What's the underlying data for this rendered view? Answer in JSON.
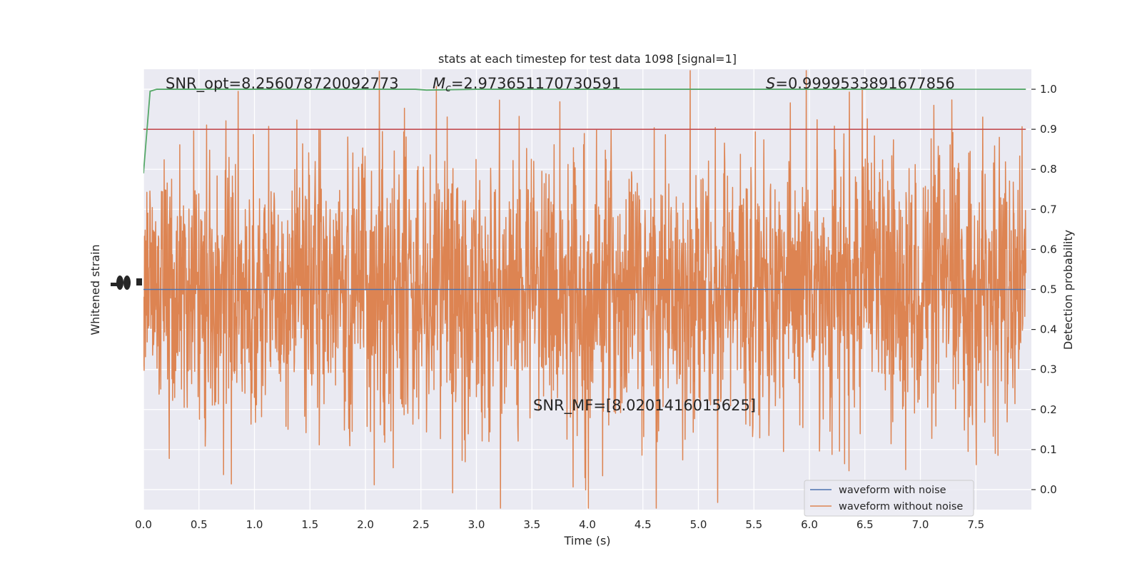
{
  "chart_data": {
    "type": "line",
    "title": "stats at each timestep for test data 1098 [signal=1]",
    "xlabel": "Time (s)",
    "ylabel_left": "Whitened strain",
    "ylabel_right": "Detection probability",
    "xlim": [
      0.0,
      8.0
    ],
    "ylim_right": [
      -0.05,
      1.05
    ],
    "x_ticks": [
      "0.0",
      "0.5",
      "1.0",
      "1.5",
      "2.0",
      "2.5",
      "3.0",
      "3.5",
      "4.0",
      "4.5",
      "5.0",
      "5.5",
      "6.0",
      "6.5",
      "7.0",
      "7.5"
    ],
    "x_tick_values": [
      0.0,
      0.5,
      1.0,
      1.5,
      2.0,
      2.5,
      3.0,
      3.5,
      4.0,
      4.5,
      5.0,
      5.5,
      6.0,
      6.5,
      7.0,
      7.5
    ],
    "y_right_ticks": [
      "0.0",
      "0.1",
      "0.2",
      "0.3",
      "0.4",
      "0.5",
      "0.6",
      "0.7",
      "0.8",
      "0.9",
      "1.0"
    ],
    "y_right_tick_values": [
      0.0,
      0.1,
      0.2,
      0.3,
      0.4,
      0.5,
      0.6,
      0.7,
      0.8,
      0.9,
      1.0
    ],
    "grid": true,
    "legend_position": "lower-right",
    "series": [
      {
        "name": "waveform with noise",
        "color": "#4c72b0"
      },
      {
        "name": "waveform without noise",
        "color": "#dd8452"
      },
      {
        "color": "#55a868",
        "x": [
          0.0,
          0.06,
          0.12,
          0.5,
          1.0,
          1.5,
          2.0,
          2.45,
          2.55,
          3.0,
          4.0,
          5.0,
          6.0,
          7.0,
          7.95
        ],
        "values": [
          0.79,
          0.995,
          1.0,
          1.0,
          1.0,
          1.0,
          1.0,
          1.0,
          0.998,
          1.0,
          1.0,
          1.0,
          1.0,
          1.0,
          1.0
        ]
      },
      {
        "color": "#c44e52",
        "x": [
          0.0,
          7.95
        ],
        "values": [
          0.9,
          0.9
        ]
      }
    ],
    "annotations": {
      "snr_opt": "SNR_opt=8.256078720092773",
      "mc_symbol": "M",
      "mc_sub": "c",
      "mc_value": "=2.973651170730591",
      "s_symbol": "S",
      "s_value": "=0.9999533891677856",
      "snr_mf": "SNR_MF=[8.0201416015625]"
    }
  }
}
